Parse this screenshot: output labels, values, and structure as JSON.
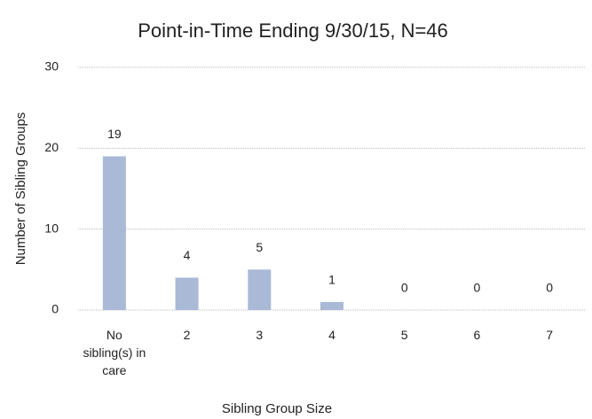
{
  "chart_data": {
    "type": "bar",
    "title": "Point-in-Time Ending 9/30/15, N=46",
    "x_label": "Sibling Group Size",
    "y_label": "Number of Sibling Groups",
    "categories": [
      "No sibling(s) in care",
      "2",
      "3",
      "4",
      "5",
      "6",
      "7"
    ],
    "values": [
      19,
      4,
      5,
      1,
      0,
      0,
      0
    ],
    "color": "#a9b9d6",
    "ylim": [
      0,
      30
    ],
    "yticks": [
      0,
      10,
      20,
      30
    ],
    "grid": true
  }
}
